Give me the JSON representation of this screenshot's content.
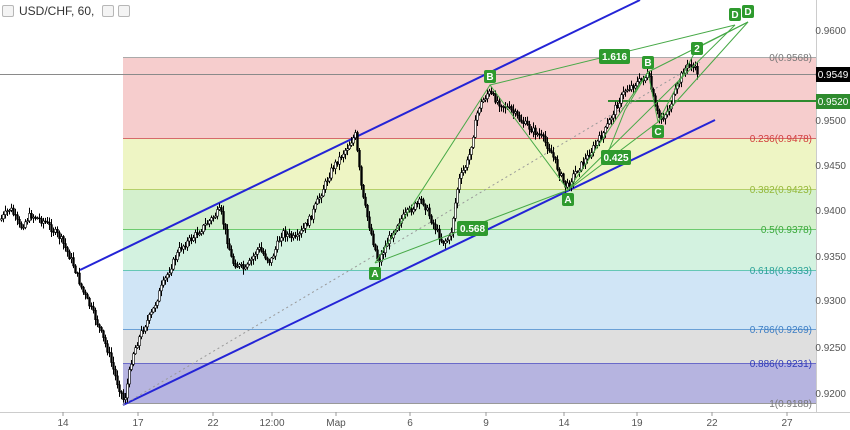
{
  "header": {
    "symbol": "USD/CHF, 60,"
  },
  "chart_data": {
    "type": "candlestick",
    "symbol": "USD/CHF",
    "timeframe": "60",
    "xlabels": [
      "14",
      "17",
      "22",
      "12:00",
      "Map",
      "6",
      "9",
      "14",
      "19",
      "22",
      "27"
    ],
    "ylabels": [
      "0.9600",
      "0.9550",
      "0.9500",
      "0.9450",
      "0.9400",
      "0.9350",
      "0.9300",
      "0.9250",
      "0.9200"
    ],
    "ylim": [
      0.9185,
      0.9625
    ],
    "last_price": "0.9549",
    "line_price": "0.9520",
    "fibonacci": [
      {
        "label": "0(0.9568)",
        "value": 0.9568,
        "color": "#777777"
      },
      {
        "label": "0.236(0.9478)",
        "value": 0.9478,
        "color": "#d23d3d"
      },
      {
        "label": "0.382(0.9423)",
        "value": 0.9423,
        "color": "#94b83a"
      },
      {
        "label": "0.5(0.9378)",
        "value": 0.9378,
        "color": "#3aa83a"
      },
      {
        "label": "0.618(0.9333)",
        "value": 0.9333,
        "color": "#2aa198"
      },
      {
        "label": "0.786(0.9269)",
        "value": 0.9269,
        "color": "#3b7dc4"
      },
      {
        "label": "0.886(0.9231)",
        "value": 0.9231,
        "color": "#2e3ab8"
      },
      {
        "label": "1(0.9188)",
        "value": 0.9188,
        "color": "#777777"
      }
    ],
    "ratios": [
      "1.616",
      "0.425",
      "0.568"
    ],
    "points": [
      {
        "label": "A",
        "x": "Map+3",
        "y": 0.934
      },
      {
        "label": "B",
        "x": "9",
        "y": 0.9537
      },
      {
        "label": "A",
        "x": "14+1",
        "y": 0.9418
      },
      {
        "label": "B",
        "x": "19",
        "y": 0.9555
      },
      {
        "label": "C",
        "x": "19+1",
        "y": 0.949
      },
      {
        "label": "2",
        "x": "19+4",
        "y": 0.9584
      },
      {
        "label": "D",
        "x": "22+2",
        "y": 0.9618
      },
      {
        "label": "D",
        "x": "22+3",
        "y": 0.9619
      }
    ]
  }
}
